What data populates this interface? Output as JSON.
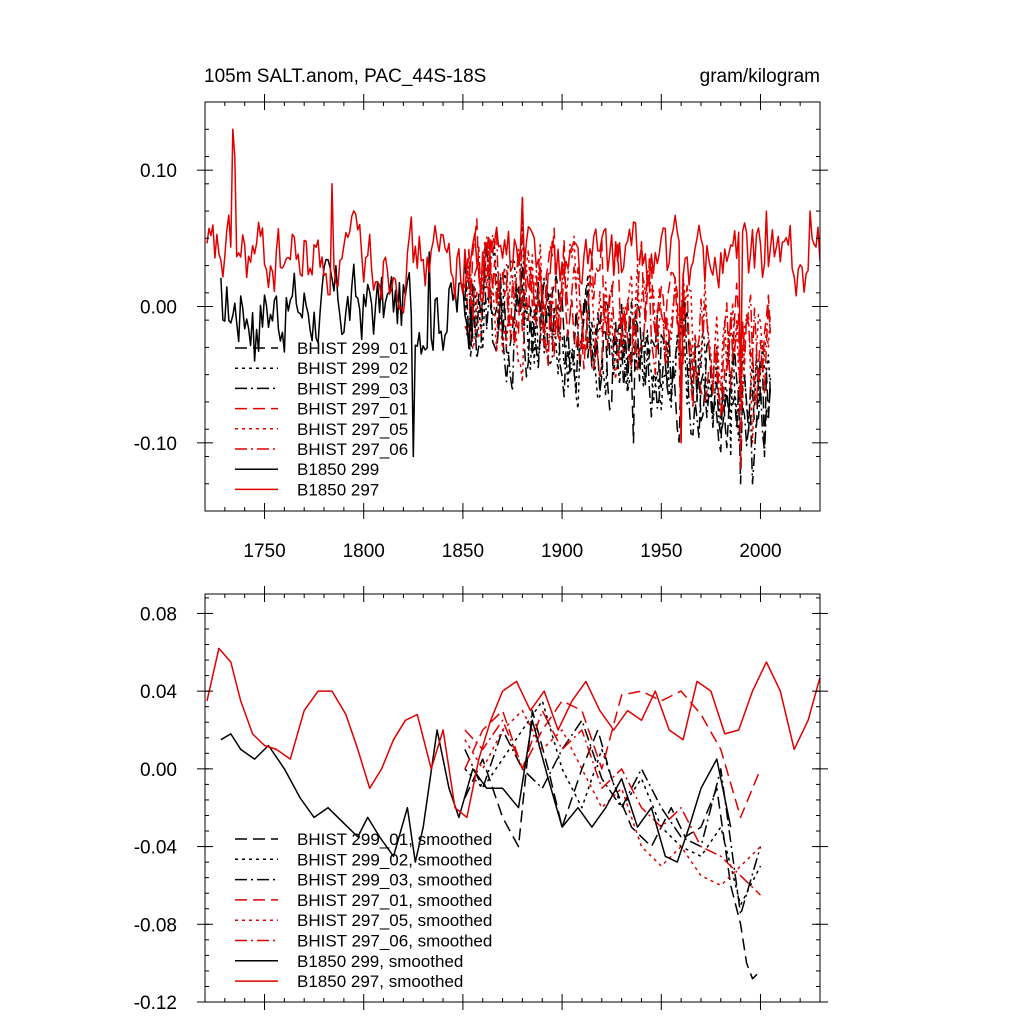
{
  "chart_data": [
    {
      "type": "line",
      "title_left": "105m SALT.anom, PAC_44S-18S",
      "title_right": "gram/kilogram",
      "xlabel": "",
      "ylabel": "",
      "xlim": [
        1720,
        2030
      ],
      "ylim": [
        -0.15,
        0.15
      ],
      "xticks": [
        1750,
        1800,
        1850,
        1900,
        1950,
        2000
      ],
      "xtick_labels": [
        "1750",
        "1800",
        "1850",
        "1900",
        "1950",
        "2000"
      ],
      "yticks": [
        0.1,
        0.0,
        -0.1
      ],
      "ytick_labels": [
        "0.10",
        "0.00",
        "-0.10"
      ],
      "legend_position": "bottom-left",
      "series": [
        {
          "name": "BHIST 299_01",
          "color": "#000000",
          "dash": "dash",
          "span": [
            1851,
            2005
          ],
          "mean": 0.005,
          "trend": -0.0005,
          "amp": 0.035,
          "seed": 11,
          "anchors": [
            [
              1936,
              -0.1
            ],
            [
              1990,
              -0.13
            ],
            [
              2002,
              -0.11
            ]
          ]
        },
        {
          "name": "BHIST 299_02",
          "color": "#000000",
          "dash": "dot",
          "span": [
            1851,
            2005
          ],
          "mean": 0.0,
          "trend": -0.0004,
          "amp": 0.035,
          "seed": 12,
          "anchors": [
            [
              1880,
              0.08
            ],
            [
              1985,
              -0.11
            ]
          ]
        },
        {
          "name": "BHIST 299_03",
          "color": "#000000",
          "dash": "dashdot",
          "span": [
            1851,
            2005
          ],
          "mean": 0.0,
          "trend": -0.0004,
          "amp": 0.035,
          "seed": 13,
          "anchors": [
            [
              1996,
              -0.13
            ]
          ]
        },
        {
          "name": "BHIST 297_01",
          "color": "#e00000",
          "dash": "dash",
          "span": [
            1851,
            2005
          ],
          "mean": 0.02,
          "trend": -0.0003,
          "amp": 0.035,
          "seed": 14,
          "anchors": [
            [
              1960,
              -0.1
            ],
            [
              1990,
              -0.12
            ]
          ]
        },
        {
          "name": "BHIST 297_05",
          "color": "#e00000",
          "dash": "dot",
          "span": [
            1851,
            2005
          ],
          "mean": 0.015,
          "trend": -0.0003,
          "amp": 0.035,
          "seed": 15,
          "anchors": [
            [
              1996,
              -0.1
            ]
          ]
        },
        {
          "name": "BHIST 297_06",
          "color": "#e00000",
          "dash": "dashdot",
          "span": [
            1851,
            2005
          ],
          "mean": 0.015,
          "trend": -0.0003,
          "amp": 0.035,
          "seed": 16,
          "anchors": [
            [
              1980,
              -0.08
            ]
          ]
        },
        {
          "name": "B1850 299",
          "color": "#000000",
          "dash": "solid",
          "span": [
            1728,
            1855
          ],
          "mean": 0.0,
          "trend": 0.0,
          "amp": 0.025,
          "seed": 17,
          "anchors": [
            [
              1745,
              -0.04
            ],
            [
              1825,
              -0.11
            ],
            [
              1833,
              0.04
            ]
          ]
        },
        {
          "name": "B1850 297",
          "color": "#e00000",
          "dash": "solid",
          "span": [
            1721,
            2030
          ],
          "mean": 0.035,
          "trend": 0.0,
          "amp": 0.022,
          "seed": 18,
          "anchors": [
            [
              1734,
              0.13
            ],
            [
              1735,
              0.11
            ],
            [
              1784,
              0.09
            ],
            [
              1880,
              0.08
            ],
            [
              1920,
              0.05
            ],
            [
              1960,
              -0.1
            ],
            [
              1990,
              -0.07
            ],
            [
              2003,
              0.07
            ],
            [
              2025,
              0.07
            ]
          ]
        }
      ]
    },
    {
      "type": "line",
      "title_left": "",
      "title_right": "",
      "xlabel": "",
      "ylabel": "",
      "xlim": [
        1720,
        2030
      ],
      "ylim": [
        -0.12,
        0.09
      ],
      "xticks": [
        1750,
        1800,
        1850,
        1900,
        1950,
        2000
      ],
      "xtick_labels": [],
      "yticks": [
        0.08,
        0.04,
        0.0,
        -0.04,
        -0.08,
        -0.12
      ],
      "ytick_labels": [
        "0.08",
        "0.04",
        "0.00",
        "-0.04",
        "-0.08",
        "-0.12"
      ],
      "legend_position": "bottom-left",
      "series": [
        {
          "name": "BHIST 299_01, smoothed",
          "color": "#000000",
          "dash": "dash",
          "x": [
            1851,
            1860,
            1870,
            1878,
            1885,
            1893,
            1900,
            1910,
            1918,
            1925,
            1935,
            1945,
            1955,
            1962,
            1970,
            1978,
            1985,
            1990,
            1993,
            1996,
            2000
          ],
          "y": [
            -0.015,
            0.005,
            -0.025,
            -0.04,
            0.03,
            0.0,
            -0.03,
            0.0,
            0.02,
            -0.005,
            -0.03,
            -0.04,
            -0.02,
            -0.035,
            -0.03,
            -0.01,
            -0.06,
            -0.08,
            -0.1,
            -0.108,
            -0.104
          ]
        },
        {
          "name": "BHIST 299_02, smoothed",
          "color": "#000000",
          "dash": "dot",
          "x": [
            1851,
            1860,
            1870,
            1880,
            1890,
            1900,
            1910,
            1920,
            1930,
            1940,
            1950,
            1960,
            1970,
            1980,
            1990,
            2000
          ],
          "y": [
            0.0,
            -0.01,
            0.005,
            0.02,
            0.035,
            0.0,
            -0.02,
            0.01,
            -0.02,
            -0.005,
            -0.03,
            -0.04,
            -0.045,
            -0.03,
            -0.07,
            -0.05
          ]
        },
        {
          "name": "BHIST 299_03, smoothed",
          "color": "#000000",
          "dash": "dashdot",
          "x": [
            1851,
            1860,
            1870,
            1880,
            1890,
            1900,
            1910,
            1920,
            1930,
            1940,
            1950,
            1960,
            1970,
            1980,
            1990,
            2000
          ],
          "y": [
            0.01,
            -0.01,
            0.02,
            0.0,
            -0.01,
            0.01,
            0.025,
            -0.005,
            -0.02,
            0.0,
            -0.02,
            -0.035,
            -0.04,
            0.0,
            -0.075,
            -0.04
          ]
        },
        {
          "name": "BHIST 297_01, smoothed",
          "color": "#e00000",
          "dash": "dash",
          "x": [
            1851,
            1860,
            1870,
            1880,
            1890,
            1900,
            1910,
            1920,
            1930,
            1940,
            1950,
            1960,
            1970,
            1980,
            1990,
            2000
          ],
          "y": [
            0.0,
            0.02,
            0.03,
            0.0,
            0.02,
            0.035,
            0.03,
            0.0,
            0.038,
            0.04,
            0.035,
            0.04,
            0.028,
            0.01,
            -0.025,
            0.0
          ]
        },
        {
          "name": "BHIST 297_05, smoothed",
          "color": "#e00000",
          "dash": "dot",
          "x": [
            1851,
            1860,
            1870,
            1880,
            1890,
            1900,
            1910,
            1920,
            1930,
            1940,
            1950,
            1960,
            1970,
            1980,
            1990,
            2000
          ],
          "y": [
            0.015,
            0.0,
            0.02,
            0.03,
            0.01,
            0.02,
            0.0,
            -0.02,
            -0.01,
            -0.04,
            -0.05,
            -0.04,
            -0.055,
            -0.06,
            -0.05,
            -0.04
          ]
        },
        {
          "name": "BHIST 297_06, smoothed",
          "color": "#e00000",
          "dash": "dashdot",
          "x": [
            1851,
            1860,
            1870,
            1880,
            1890,
            1900,
            1910,
            1920,
            1930,
            1940,
            1950,
            1960,
            1970,
            1980,
            1990,
            2000
          ],
          "y": [
            0.02,
            0.01,
            0.025,
            0.0,
            0.03,
            0.01,
            0.02,
            -0.01,
            0.0,
            -0.02,
            -0.03,
            -0.02,
            -0.04,
            -0.045,
            -0.055,
            -0.065
          ]
        },
        {
          "name": "B1850 299, smoothed",
          "color": "#000000",
          "dash": "solid",
          "x": [
            1728,
            1733,
            1738,
            1745,
            1752,
            1760,
            1768,
            1775,
            1782,
            1790,
            1797,
            1802,
            1808,
            1815,
            1822,
            1826,
            1830,
            1837,
            1843,
            1848,
            1855,
            1862,
            1870,
            1878,
            1885,
            1893,
            1900,
            1908,
            1915,
            1922,
            1930,
            1938,
            1945,
            1952,
            1958,
            1964,
            1970,
            1978,
            1985
          ],
          "y": [
            0.015,
            0.018,
            0.01,
            0.005,
            0.012,
            0.0,
            -0.015,
            -0.025,
            -0.02,
            -0.028,
            -0.035,
            -0.025,
            -0.035,
            -0.045,
            -0.02,
            -0.048,
            -0.03,
            0.02,
            -0.01,
            -0.025,
            0.0,
            -0.01,
            -0.01,
            -0.02,
            0.025,
            -0.005,
            -0.03,
            -0.02,
            -0.03,
            -0.02,
            -0.005,
            -0.03,
            -0.02,
            -0.045,
            -0.048,
            -0.03,
            -0.01,
            0.005,
            -0.03
          ]
        },
        {
          "name": "B1850 297, smoothed",
          "color": "#e00000",
          "dash": "solid",
          "x": [
            1721,
            1727,
            1733,
            1738,
            1744,
            1750,
            1756,
            1763,
            1770,
            1777,
            1784,
            1791,
            1797,
            1803,
            1809,
            1815,
            1821,
            1827,
            1834,
            1840,
            1846,
            1852,
            1858,
            1864,
            1870,
            1877,
            1884,
            1891,
            1898,
            1905,
            1912,
            1919,
            1926,
            1933,
            1940,
            1947,
            1954,
            1961,
            1968,
            1975,
            1982,
            1989,
            1996,
            2003,
            2010,
            2017,
            2024,
            2030
          ],
          "y": [
            0.035,
            0.062,
            0.055,
            0.035,
            0.018,
            0.012,
            0.01,
            0.005,
            0.03,
            0.04,
            0.04,
            0.028,
            0.01,
            -0.01,
            0.0,
            0.015,
            0.025,
            0.028,
            0.0,
            0.02,
            -0.02,
            -0.025,
            0.005,
            0.025,
            0.04,
            0.045,
            0.03,
            0.04,
            0.02,
            0.035,
            0.045,
            0.03,
            0.02,
            0.03,
            0.025,
            0.04,
            0.02,
            0.015,
            0.045,
            0.04,
            0.018,
            0.02,
            0.04,
            0.055,
            0.04,
            0.01,
            0.025,
            0.047
          ]
        }
      ]
    }
  ]
}
